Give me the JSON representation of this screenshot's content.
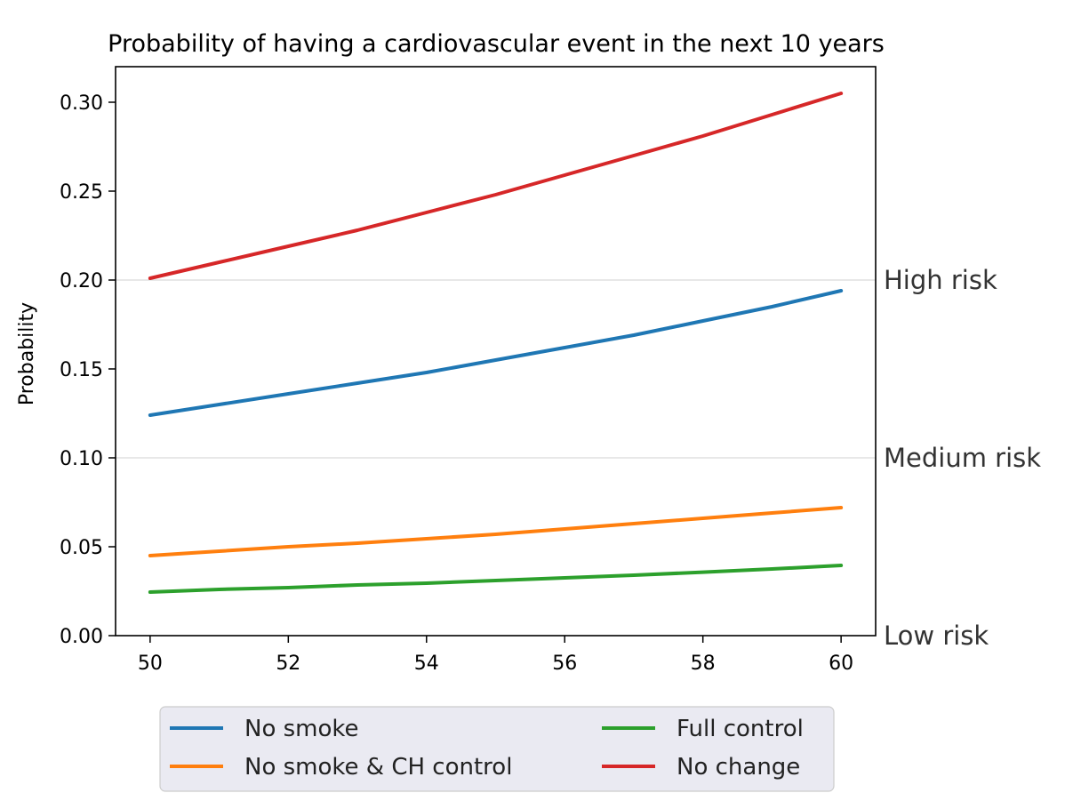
{
  "chart_data": {
    "type": "line",
    "title": "Probability of having a cardiovascular event in the next 10 years",
    "xlabel": "",
    "ylabel": "Probability",
    "xlim": [
      49.5,
      60.5
    ],
    "ylim": [
      0.0,
      0.32
    ],
    "x_ticks": [
      50,
      52,
      54,
      56,
      58,
      60
    ],
    "y_ticks": [
      0.0,
      0.05,
      0.1,
      0.15,
      0.2,
      0.25,
      0.3
    ],
    "y_tick_labels": [
      "0.00",
      "0.05",
      "0.10",
      "0.15",
      "0.20",
      "0.25",
      "0.30"
    ],
    "x_tick_labels": [
      "50",
      "52",
      "54",
      "56",
      "58",
      "60"
    ],
    "x": [
      50,
      51,
      52,
      53,
      54,
      55,
      56,
      57,
      58,
      59,
      60
    ],
    "series": [
      {
        "name": "No smoke",
        "color": "#1f77b4",
        "values": [
          0.124,
          0.13,
          0.136,
          0.142,
          0.148,
          0.155,
          0.162,
          0.169,
          0.177,
          0.185,
          0.194
        ]
      },
      {
        "name": "No smoke & CH control",
        "color": "#ff7f0e",
        "values": [
          0.045,
          0.0475,
          0.05,
          0.052,
          0.0545,
          0.057,
          0.06,
          0.063,
          0.066,
          0.069,
          0.072
        ]
      },
      {
        "name": "Full control",
        "color": "#2ca02c",
        "values": [
          0.0245,
          0.026,
          0.027,
          0.0285,
          0.0295,
          0.031,
          0.0325,
          0.034,
          0.0357,
          0.0375,
          0.0395
        ]
      },
      {
        "name": "No change",
        "color": "#d62728",
        "values": [
          0.201,
          0.21,
          0.219,
          0.228,
          0.238,
          0.248,
          0.259,
          0.27,
          0.281,
          0.293,
          0.305
        ]
      }
    ],
    "risk_levels": [
      {
        "label": "High risk",
        "y": 0.2
      },
      {
        "label": "Medium risk",
        "y": 0.1
      },
      {
        "label": "Low risk",
        "y": 0.0
      }
    ],
    "legend": {
      "placement": "bottom-center",
      "columns": [
        [
          "No smoke",
          "No smoke & CH control"
        ],
        [
          "Full control",
          "No change"
        ]
      ]
    }
  }
}
